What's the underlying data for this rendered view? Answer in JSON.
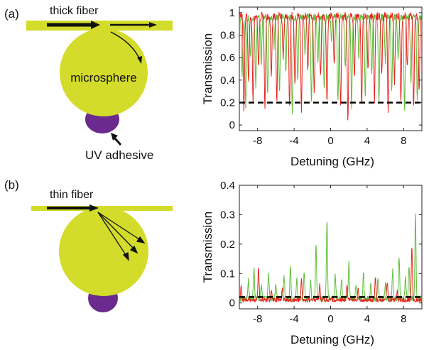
{
  "panels": {
    "a": {
      "label": "(a)",
      "fiber_label": "thick fiber",
      "sphere_label": "microsphere",
      "adhesive_label": "UV adhesive"
    },
    "b": {
      "label": "(b)",
      "fiber_label": "thin fiber"
    }
  },
  "colors": {
    "fiber": "#d3dc2a",
    "sphere": "#d3dc2a",
    "adhesive": "#6a2a8e",
    "series_green": "#5fbf3a",
    "series_red": "#e8231f",
    "threshold": "#000000"
  },
  "chart_data": [
    {
      "type": "line",
      "panel": "(a)",
      "xlabel": "Detuning (GHz)",
      "ylabel": "Transmission",
      "xlim": [
        -10,
        10
      ],
      "ylim": [
        -0.05,
        1.05
      ],
      "xticks": [
        -8,
        -4,
        0,
        4,
        8
      ],
      "yticks": [
        0,
        0.2,
        0.4,
        0.6,
        0.8,
        1
      ],
      "ytick_labels": [
        "0",
        "0.2",
        "0.4",
        "0.6",
        "0.8",
        "1"
      ],
      "threshold": 0.2,
      "series": [
        {
          "color": "#5fbf3a",
          "baseline": 0.96,
          "noise": 0.03,
          "dips": [
            [
              -9.7,
              0.45
            ],
            [
              -9.3,
              0.15
            ],
            [
              -8.8,
              0.6
            ],
            [
              -8.2,
              0.35
            ],
            [
              -7.6,
              0.55
            ],
            [
              -6.9,
              0.25
            ],
            [
              -6.2,
              0.7
            ],
            [
              -5.6,
              0.3
            ],
            [
              -4.9,
              0.5
            ],
            [
              -4.2,
              0.12
            ],
            [
              -3.6,
              0.4
            ],
            [
              -2.8,
              0.65
            ],
            [
              -2.1,
              0.18
            ],
            [
              -1.4,
              0.55
            ],
            [
              -0.7,
              0.3
            ],
            [
              0.1,
              0.75
            ],
            [
              0.8,
              0.2
            ],
            [
              1.6,
              0.5
            ],
            [
              2.3,
              0.14
            ],
            [
              3.1,
              0.6
            ],
            [
              3.8,
              0.25
            ],
            [
              4.5,
              0.45
            ],
            [
              5.3,
              0.18
            ],
            [
              6.0,
              0.55
            ],
            [
              6.7,
              0.3
            ],
            [
              7.4,
              0.6
            ],
            [
              8.1,
              0.12
            ],
            [
              8.8,
              0.4
            ],
            [
              9.5,
              0.22
            ]
          ]
        },
        {
          "color": "#e8231f",
          "baseline": 0.97,
          "noise": 0.035,
          "dips": [
            [
              -9.5,
              0.14
            ],
            [
              -9.0,
              0.4
            ],
            [
              -8.5,
              0.2
            ],
            [
              -7.9,
              0.5
            ],
            [
              -7.2,
              0.16
            ],
            [
              -6.5,
              0.45
            ],
            [
              -5.9,
              0.22
            ],
            [
              -5.2,
              0.6
            ],
            [
              -4.5,
              0.15
            ],
            [
              -3.9,
              0.35
            ],
            [
              -3.2,
              0.12
            ],
            [
              -2.5,
              0.5
            ],
            [
              -1.8,
              0.25
            ],
            [
              -1.1,
              0.42
            ],
            [
              -0.4,
              0.18
            ],
            [
              0.4,
              0.55
            ],
            [
              1.1,
              0.15
            ],
            [
              1.9,
              0.05
            ],
            [
              2.6,
              0.4
            ],
            [
              3.4,
              0.17
            ],
            [
              4.1,
              0.5
            ],
            [
              4.8,
              0.2
            ],
            [
              5.6,
              0.45
            ],
            [
              6.3,
              0.14
            ],
            [
              7.0,
              0.38
            ],
            [
              7.7,
              0.2
            ],
            [
              8.4,
              0.5
            ],
            [
              9.1,
              0.16
            ],
            [
              9.7,
              0.3
            ]
          ]
        }
      ]
    },
    {
      "type": "line",
      "panel": "(b)",
      "xlabel": "Detuning (GHz)",
      "ylabel": "Transmission",
      "xlim": [
        -10,
        10
      ],
      "ylim": [
        -0.02,
        0.4
      ],
      "xticks": [
        -8,
        -4,
        0,
        4,
        8
      ],
      "yticks": [
        0,
        0.1,
        0.2,
        0.3,
        0.4
      ],
      "ytick_labels": [
        "0",
        "0.1",
        "0.2",
        "0.3",
        "0.4"
      ],
      "threshold": 0.02,
      "series": [
        {
          "color": "#5fbf3a",
          "baseline": 0.015,
          "noise": 0.01,
          "spikes": [
            [
              -9.0,
              0.08
            ],
            [
              -8.4,
              0.12
            ],
            [
              -7.6,
              0.06
            ],
            [
              -6.8,
              0.1
            ],
            [
              -6.0,
              0.07
            ],
            [
              -5.1,
              0.09
            ],
            [
              -4.4,
              0.13
            ],
            [
              -3.7,
              0.08
            ],
            [
              -2.9,
              0.11
            ],
            [
              -2.2,
              0.07
            ],
            [
              -1.6,
              0.2
            ],
            [
              -0.4,
              0.29
            ],
            [
              0.5,
              0.1
            ],
            [
              1.2,
              0.08
            ],
            [
              2.0,
              0.14
            ],
            [
              2.8,
              0.07
            ],
            [
              3.6,
              0.1
            ],
            [
              4.4,
              0.06
            ],
            [
              5.2,
              0.09
            ],
            [
              6.0,
              0.07
            ],
            [
              6.8,
              0.11
            ],
            [
              7.5,
              0.16
            ],
            [
              8.2,
              0.09
            ],
            [
              8.6,
              0.13
            ],
            [
              9.3,
              0.3
            ]
          ]
        },
        {
          "color": "#e8231f",
          "baseline": 0.01,
          "noise": 0.007,
          "spikes": [
            [
              -9.8,
              0.06
            ],
            [
              -7.9,
              0.12
            ],
            [
              -6.5,
              0.04
            ],
            [
              -5.3,
              0.05
            ],
            [
              -3.2,
              0.08
            ],
            [
              -1.2,
              0.06
            ],
            [
              1.8,
              0.06
            ],
            [
              3.0,
              0.05
            ],
            [
              4.9,
              0.09
            ],
            [
              6.2,
              0.07
            ],
            [
              7.3,
              0.04
            ],
            [
              8.9,
              0.19
            ]
          ]
        }
      ]
    }
  ]
}
